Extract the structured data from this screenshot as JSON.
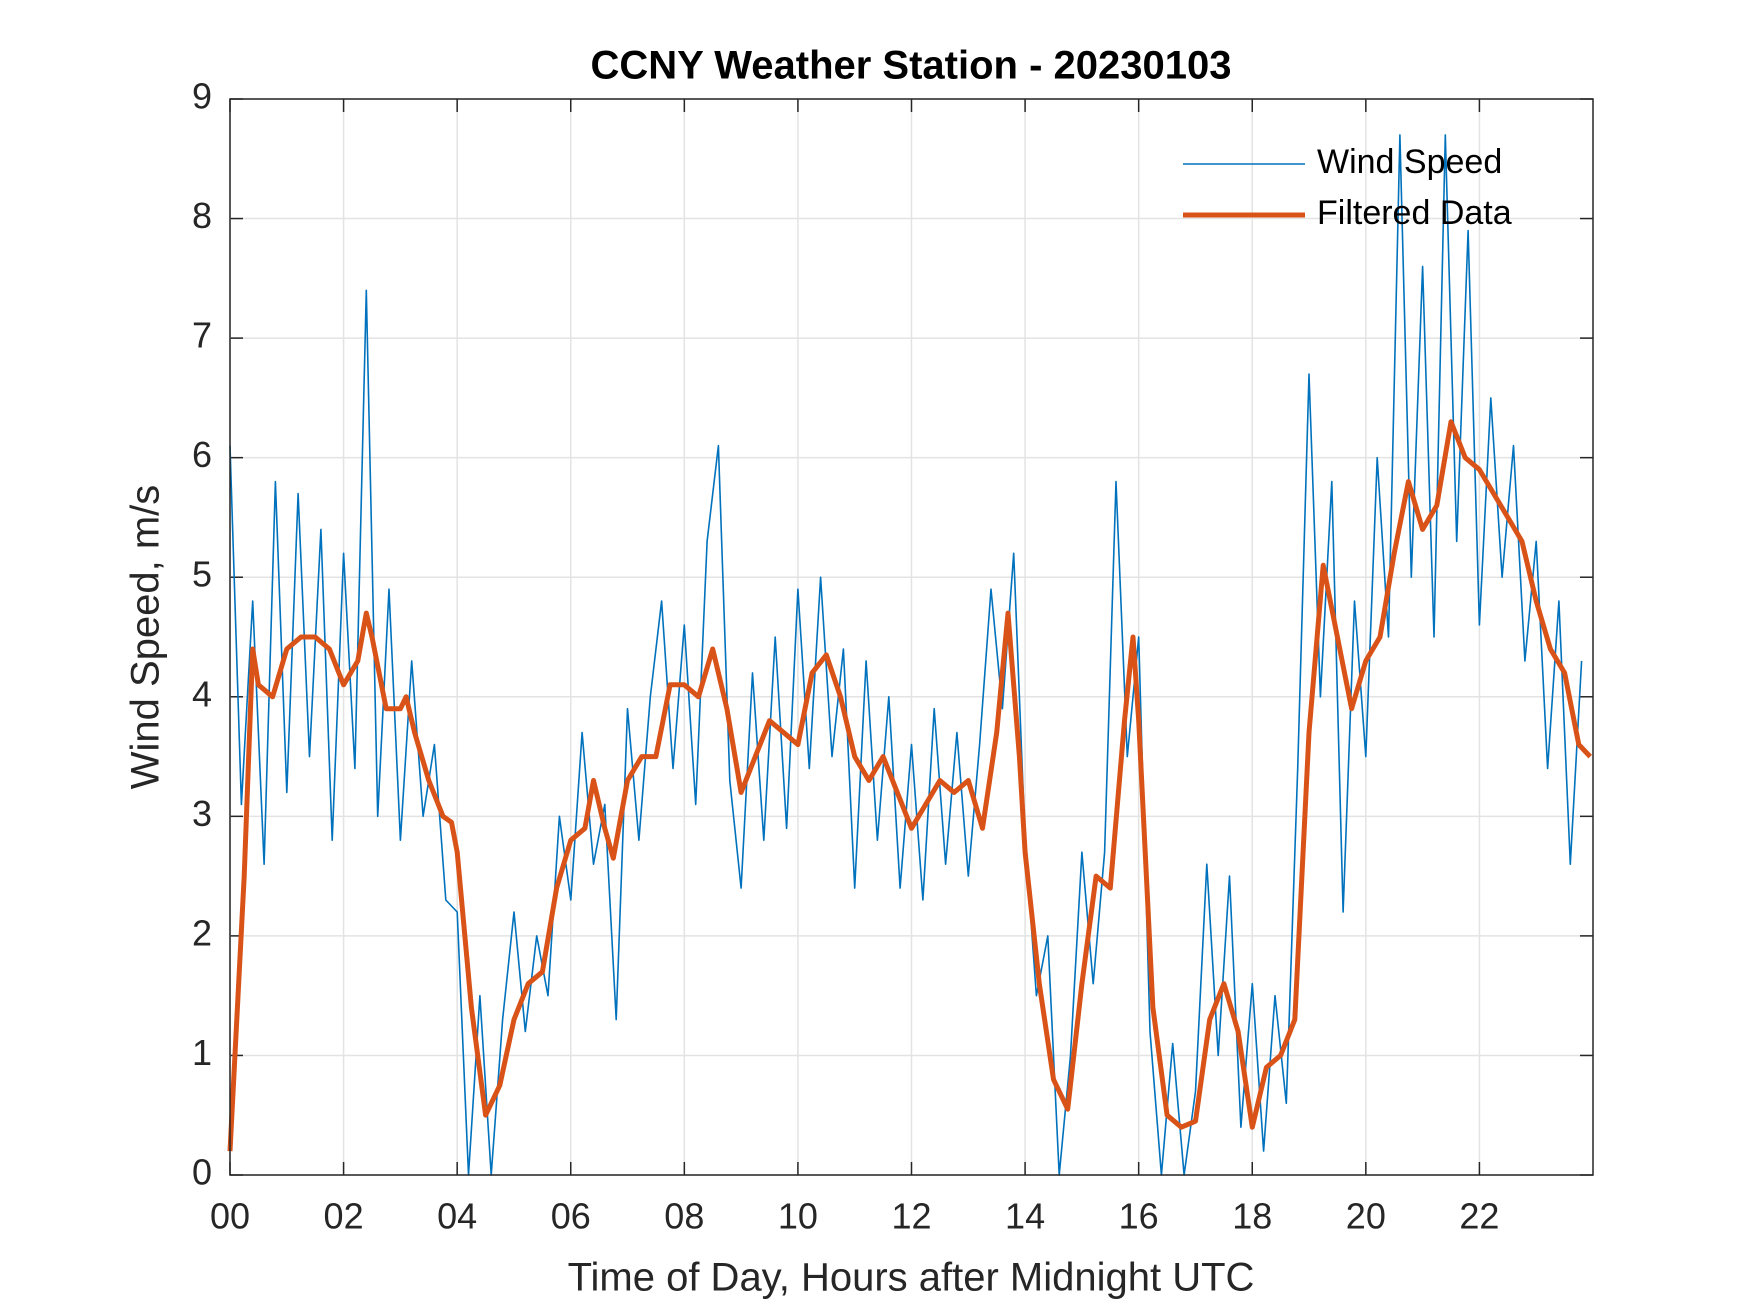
{
  "chart_data": {
    "type": "line",
    "title": "CCNY Weather Station - 20230103",
    "xlabel": "Time of Day, Hours after Midnight UTC",
    "ylabel": "Wind Speed, m/s",
    "xlim": [
      0,
      24
    ],
    "ylim": [
      0,
      9
    ],
    "xticks": [
      {
        "value": 0,
        "label": "00"
      },
      {
        "value": 2,
        "label": "02"
      },
      {
        "value": 4,
        "label": "04"
      },
      {
        "value": 6,
        "label": "06"
      },
      {
        "value": 8,
        "label": "08"
      },
      10,
      12,
      14,
      16,
      18,
      20,
      22
    ],
    "yticks": [
      0,
      1,
      2,
      3,
      4,
      5,
      6,
      7,
      8,
      9
    ],
    "grid": true,
    "legend": "northeast",
    "series": [
      {
        "name": "Wind Speed",
        "color": "#0072bd",
        "x": [
          0,
          0.2,
          0.4,
          0.6,
          0.8,
          1,
          1.2,
          1.4,
          1.6,
          1.8,
          2,
          2.2,
          2.4,
          2.6,
          2.8,
          3,
          3.2,
          3.4,
          3.6,
          3.8,
          4,
          4.2,
          4.4,
          4.6,
          4.8,
          5,
          5.2,
          5.4,
          5.6,
          5.8,
          6,
          6.2,
          6.4,
          6.6,
          6.8,
          7,
          7.2,
          7.4,
          7.6,
          7.8,
          8,
          8.2,
          8.4,
          8.6,
          8.8,
          9,
          9.2,
          9.4,
          9.6,
          9.8,
          10,
          10.2,
          10.4,
          10.6,
          10.8,
          11,
          11.2,
          11.4,
          11.6,
          11.8,
          12,
          12.2,
          12.4,
          12.6,
          12.8,
          13,
          13.2,
          13.4,
          13.6,
          13.8,
          14,
          14.2,
          14.4,
          14.6,
          14.8,
          15,
          15.2,
          15.4,
          15.6,
          15.8,
          16,
          16.2,
          16.4,
          16.6,
          16.8,
          17,
          17.2,
          17.4,
          17.6,
          17.8,
          18,
          18.2,
          18.4,
          18.6,
          18.8,
          19,
          19.2,
          19.4,
          19.6,
          19.8,
          20,
          20.2,
          20.4,
          20.6,
          20.8,
          21,
          21.2,
          21.4,
          21.6,
          21.8,
          22,
          22.2,
          22.4,
          22.6,
          22.8,
          23,
          23.2,
          23.4,
          23.6,
          23.8
        ],
        "values": [
          6.1,
          3.1,
          4.8,
          2.6,
          5.8,
          3.2,
          5.7,
          3.5,
          5.4,
          2.8,
          5.2,
          3.4,
          7.4,
          3.0,
          4.9,
          2.8,
          4.3,
          3.0,
          3.6,
          2.3,
          2.2,
          0.0,
          1.5,
          0.0,
          1.3,
          2.2,
          1.2,
          2.0,
          1.5,
          3.0,
          2.3,
          3.7,
          2.6,
          3.1,
          1.3,
          3.9,
          2.8,
          4.0,
          4.8,
          3.4,
          4.6,
          3.1,
          5.3,
          6.1,
          3.3,
          2.4,
          4.2,
          2.8,
          4.5,
          2.9,
          4.9,
          3.4,
          5.0,
          3.5,
          4.4,
          2.4,
          4.3,
          2.8,
          4.0,
          2.4,
          3.6,
          2.3,
          3.9,
          2.6,
          3.7,
          2.5,
          3.6,
          4.9,
          3.9,
          5.2,
          2.8,
          1.5,
          2.0,
          0.0,
          1.0,
          2.7,
          1.6,
          2.7,
          5.8,
          3.5,
          4.5,
          1.2,
          0.0,
          1.1,
          0.0,
          0.7,
          2.6,
          1.0,
          2.5,
          0.4,
          1.6,
          0.2,
          1.5,
          0.6,
          3.4,
          6.7,
          4.0,
          5.8,
          2.2,
          4.8,
          3.5,
          6.0,
          4.5,
          8.7,
          5.0,
          7.6,
          4.5,
          8.7,
          5.3,
          7.9,
          4.6,
          6.5,
          5.0,
          6.1,
          4.3,
          5.3,
          3.4,
          4.8,
          2.6,
          4.3
        ]
      },
      {
        "name": "Filtered Data",
        "color": "#d95319",
        "x": [
          0,
          0.25,
          0.4,
          0.5,
          0.75,
          1,
          1.25,
          1.5,
          1.75,
          2,
          2.25,
          2.4,
          2.5,
          2.75,
          3,
          3.1,
          3.25,
          3.5,
          3.75,
          3.9,
          4,
          4.25,
          4.5,
          4.75,
          5,
          5.25,
          5.5,
          5.75,
          6,
          6.25,
          6.4,
          6.6,
          6.75,
          7,
          7.25,
          7.5,
          7.75,
          8,
          8.25,
          8.5,
          8.75,
          9,
          9.25,
          9.5,
          9.75,
          10,
          10.25,
          10.5,
          10.75,
          11,
          11.25,
          11.5,
          11.75,
          12,
          12.25,
          12.5,
          12.75,
          13,
          13.25,
          13.5,
          13.7,
          13.9,
          14,
          14.25,
          14.5,
          14.75,
          15,
          15.25,
          15.5,
          15.75,
          15.9,
          16,
          16.25,
          16.5,
          16.75,
          17,
          17.25,
          17.5,
          17.75,
          18,
          18.25,
          18.5,
          18.75,
          19,
          19.25,
          19.5,
          19.75,
          20,
          20.25,
          20.5,
          20.75,
          21,
          21.25,
          21.5,
          21.75,
          22,
          22.25,
          22.5,
          22.75,
          23,
          23.25,
          23.5,
          23.75,
          23.95
        ],
        "values": [
          0.2,
          2.5,
          4.4,
          4.1,
          4.0,
          4.4,
          4.5,
          4.5,
          4.4,
          4.1,
          4.3,
          4.7,
          4.5,
          3.9,
          3.9,
          4.0,
          3.7,
          3.3,
          3.0,
          2.95,
          2.7,
          1.4,
          0.5,
          0.75,
          1.3,
          1.6,
          1.7,
          2.4,
          2.8,
          2.9,
          3.3,
          2.9,
          2.65,
          3.3,
          3.5,
          3.5,
          4.1,
          4.1,
          4.0,
          4.4,
          3.9,
          3.2,
          3.5,
          3.8,
          3.7,
          3.6,
          4.2,
          4.35,
          4.0,
          3.5,
          3.3,
          3.5,
          3.2,
          2.9,
          3.1,
          3.3,
          3.2,
          3.3,
          2.9,
          3.7,
          4.7,
          3.5,
          2.7,
          1.6,
          0.8,
          0.55,
          1.6,
          2.5,
          2.4,
          3.8,
          4.5,
          3.8,
          1.4,
          0.5,
          0.4,
          0.45,
          1.3,
          1.6,
          1.2,
          0.4,
          0.9,
          1.0,
          1.3,
          3.7,
          5.1,
          4.5,
          3.9,
          4.3,
          4.5,
          5.2,
          5.8,
          5.4,
          5.6,
          6.3,
          6.0,
          5.9,
          5.7,
          5.5,
          5.3,
          4.8,
          4.4,
          4.2,
          3.6,
          3.5
        ]
      }
    ]
  }
}
